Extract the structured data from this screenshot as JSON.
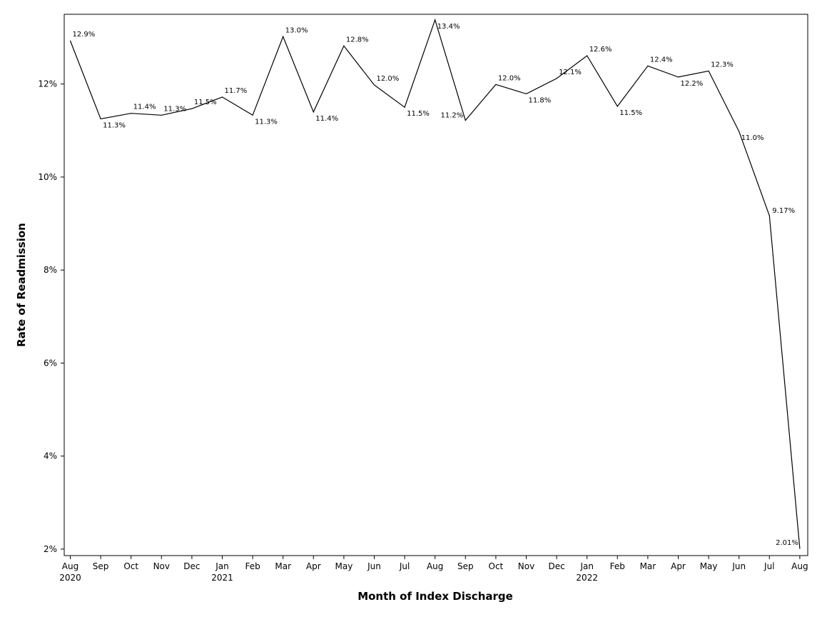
{
  "chart_data": {
    "type": "line",
    "xlabel": "Month of Index Discharge",
    "ylabel": "Rate of Readmission",
    "categories": [
      "Aug",
      "Sep",
      "Oct",
      "Nov",
      "Dec",
      "Jan",
      "Feb",
      "Mar",
      "Apr",
      "May",
      "Jun",
      "Jul",
      "Aug",
      "Sep",
      "Oct",
      "Nov",
      "Dec",
      "Jan",
      "Feb",
      "Mar",
      "Apr",
      "May",
      "Jun",
      "Jul",
      "Aug"
    ],
    "year_labels": [
      "2020",
      "",
      "",
      "",
      "",
      "2021",
      "",
      "",
      "",
      "",
      "",
      "",
      "",
      "",
      "",
      "",
      "",
      "2022",
      "",
      "",
      "",
      "",
      "",
      "",
      ""
    ],
    "values": [
      12.93,
      11.25,
      11.37,
      11.33,
      11.47,
      11.72,
      11.33,
      13.02,
      11.4,
      12.82,
      11.98,
      11.5,
      13.38,
      11.22,
      11.99,
      11.79,
      12.12,
      12.61,
      11.52,
      12.39,
      12.15,
      12.28,
      10.98,
      9.17,
      2.01
    ],
    "data_labels": [
      "12.9%",
      "11.3%",
      "11.4%",
      "11.3%",
      "11.5%",
      "11.7%",
      "11.3%",
      "13.0%",
      "11.4%",
      "12.8%",
      "12.0%",
      "11.5%",
      "13.4%",
      "11.2%",
      "12.0%",
      "11.8%",
      "12.1%",
      "12.6%",
      "11.5%",
      "12.4%",
      "12.2%",
      "12.3%",
      "11.0%",
      "9.17%",
      "2.01%"
    ],
    "label_positions": [
      "above",
      "below",
      "above",
      "above",
      "above",
      "above",
      "below",
      "above",
      "below",
      "above",
      "above",
      "below",
      "below",
      "below-left",
      "above",
      "below",
      "above",
      "above",
      "below",
      "above",
      "below",
      "above",
      "below",
      "below",
      "left"
    ],
    "y_ticks": [
      2,
      4,
      6,
      8,
      10,
      12
    ],
    "y_tick_labels": [
      "2%",
      "4%",
      "6%",
      "8%",
      "10%",
      "12%"
    ],
    "ylim": [
      1.86,
      13.5
    ],
    "grid": false,
    "line_color": "#000000"
  }
}
